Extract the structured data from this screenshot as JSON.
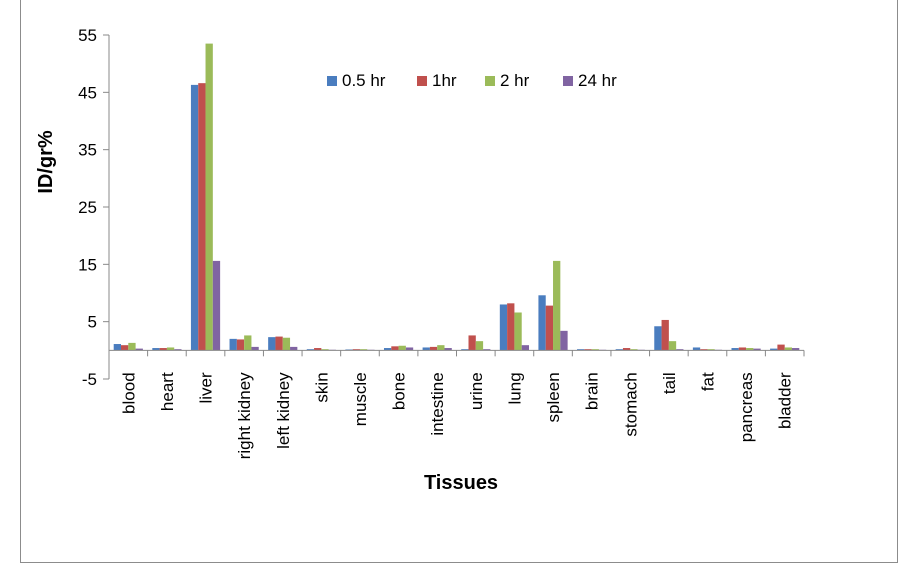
{
  "chart_data": {
    "type": "bar",
    "title": "",
    "xlabel": "Tissues",
    "ylabel": "ID/gr%",
    "ylim": [
      -5,
      55
    ],
    "yticks": [
      -5,
      5,
      15,
      25,
      35,
      45,
      55
    ],
    "grid": false,
    "legend_position": "top-center",
    "categories": [
      "blood",
      "heart",
      "liver",
      "right kidney",
      "left kidney",
      "skin",
      "muscle",
      "bone",
      "intestine",
      "urine",
      "lung",
      "spleen",
      "brain",
      "stomach",
      "tail",
      "fat",
      "pancreas",
      "bladder"
    ],
    "series": [
      {
        "name": "0.5 hr",
        "color": "#4a7dbf",
        "values": [
          1.1,
          0.4,
          46.3,
          2.0,
          2.3,
          0.2,
          0.15,
          0.4,
          0.5,
          0.2,
          8.0,
          9.6,
          0.2,
          0.2,
          4.2,
          0.5,
          0.4,
          0.3
        ]
      },
      {
        "name": "1hr",
        "color": "#c0504d",
        "values": [
          0.9,
          0.4,
          46.6,
          1.9,
          2.4,
          0.4,
          0.2,
          0.7,
          0.6,
          2.6,
          8.2,
          7.8,
          0.2,
          0.4,
          5.3,
          0.2,
          0.5,
          1.0
        ]
      },
      {
        "name": "2 hr",
        "color": "#9bbb59",
        "values": [
          1.3,
          0.5,
          53.5,
          2.6,
          2.2,
          0.2,
          0.2,
          0.8,
          0.9,
          1.6,
          6.6,
          15.6,
          0.2,
          0.2,
          1.6,
          0.2,
          0.4,
          0.5
        ]
      },
      {
        "name": "24 hr",
        "color": "#8064a2",
        "values": [
          0.3,
          0.2,
          15.6,
          0.6,
          0.6,
          0.1,
          0.1,
          0.5,
          0.4,
          0.2,
          0.9,
          3.4,
          0.1,
          0.1,
          0.2,
          0.1,
          0.3,
          0.4
        ]
      }
    ]
  }
}
